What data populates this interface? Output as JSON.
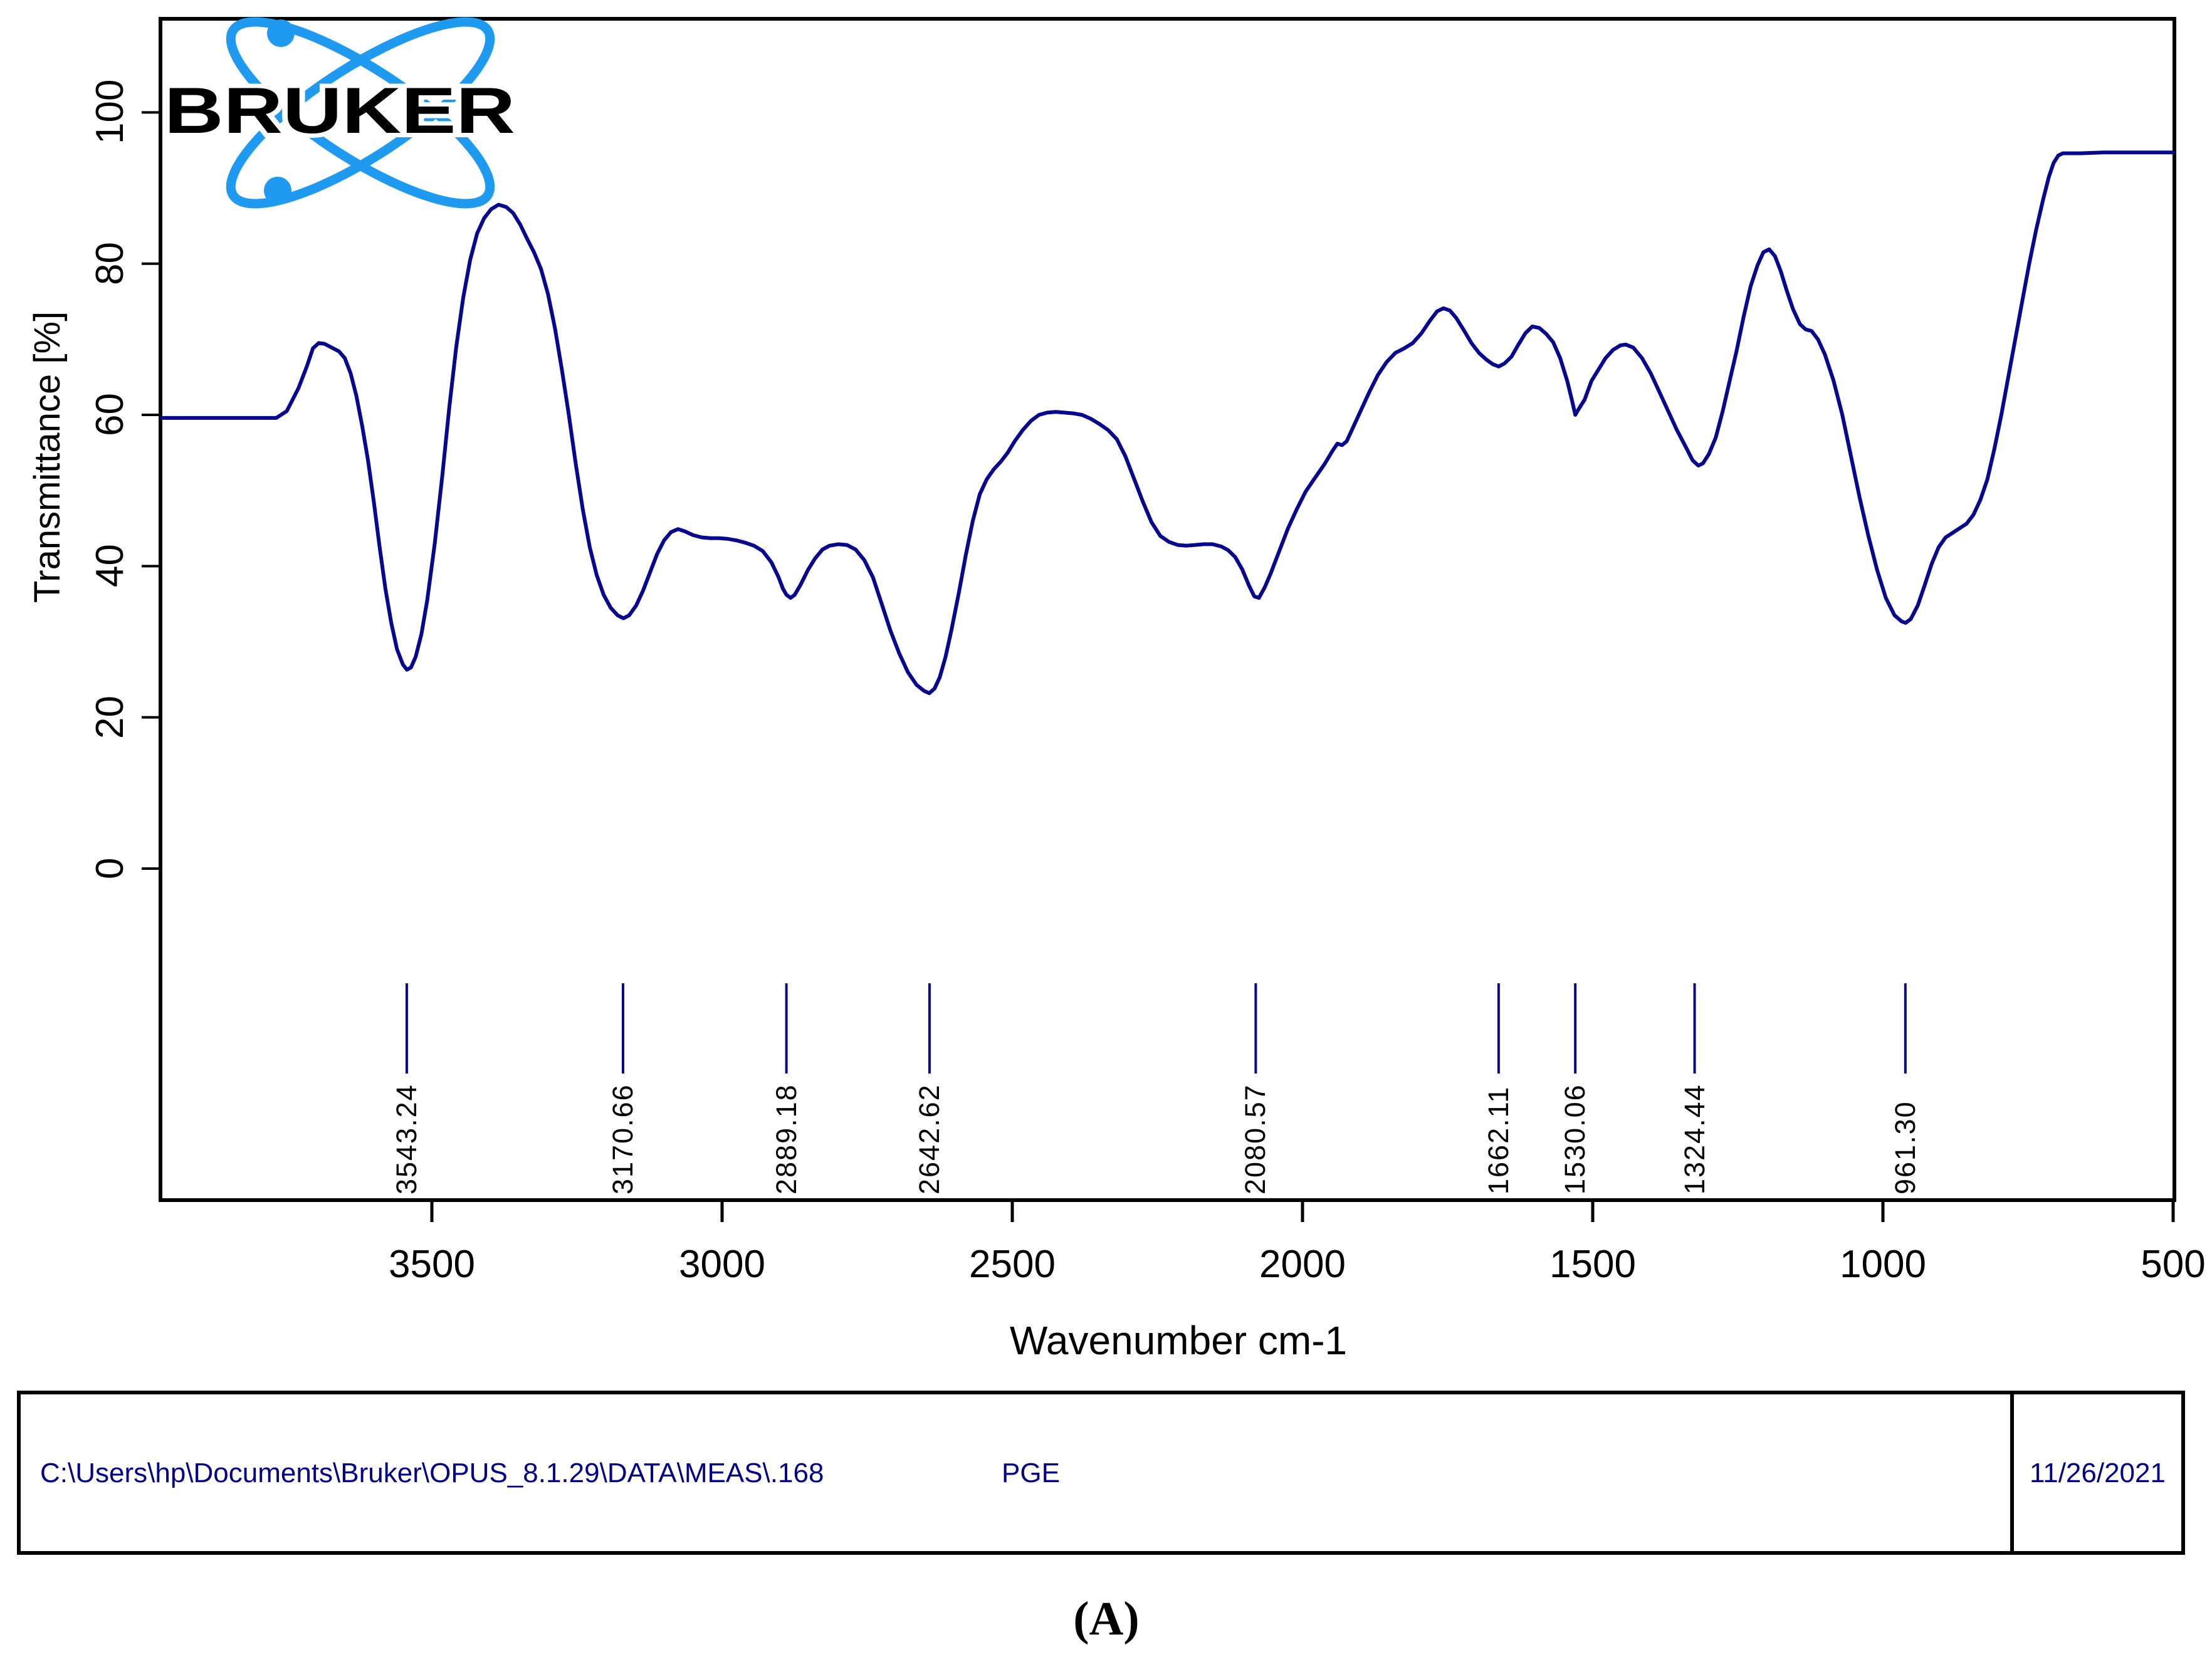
{
  "logo": {
    "text": "BRUKER",
    "blue": "#1E9AF0"
  },
  "chart_data": {
    "type": "line",
    "title": "",
    "xlabel": "Wavenumber cm-1",
    "ylabel": "Transmittance [%]",
    "x_ticks": [
      3500,
      3000,
      2500,
      2000,
      1500,
      1000,
      500
    ],
    "y_ticks": [
      0,
      20,
      40,
      60,
      80,
      100
    ],
    "x_axis_descending": true,
    "xlim": [
      3965,
      500
    ],
    "ylim": [
      -44,
      112
    ],
    "grid": false,
    "legend_position": "none",
    "line_color": "#08088F",
    "axis_color": "#000000",
    "peak_marker_color": "#08088F",
    "peak_labels": [
      "3543.24",
      "3170.66",
      "2889.18",
      "2642.62",
      "2080.57",
      "1662.11",
      "1530.06",
      "1324.44",
      "961.30"
    ],
    "series": [
      {
        "name": "PGE",
        "points": [
          [
            3965,
            59.6
          ],
          [
            3900,
            59.6
          ],
          [
            3850,
            59.6
          ],
          [
            3800,
            59.6
          ],
          [
            3768,
            59.6
          ],
          [
            3750,
            60.5
          ],
          [
            3730,
            63.5
          ],
          [
            3715,
            66.5
          ],
          [
            3705,
            68.8
          ],
          [
            3695,
            69.5
          ],
          [
            3685,
            69.4
          ],
          [
            3670,
            68.8
          ],
          [
            3660,
            68.4
          ],
          [
            3650,
            67.5
          ],
          [
            3640,
            65.5
          ],
          [
            3630,
            62.5
          ],
          [
            3620,
            58.5
          ],
          [
            3610,
            54
          ],
          [
            3600,
            48.5
          ],
          [
            3590,
            42.5
          ],
          [
            3580,
            37
          ],
          [
            3570,
            32.5
          ],
          [
            3560,
            29
          ],
          [
            3550,
            27
          ],
          [
            3543,
            26.3
          ],
          [
            3536,
            26.6
          ],
          [
            3528,
            28
          ],
          [
            3518,
            31
          ],
          [
            3508,
            35.5
          ],
          [
            3495,
            43
          ],
          [
            3482,
            52
          ],
          [
            3470,
            61
          ],
          [
            3458,
            69
          ],
          [
            3446,
            75.5
          ],
          [
            3434,
            80.5
          ],
          [
            3422,
            84
          ],
          [
            3410,
            86
          ],
          [
            3398,
            87.2
          ],
          [
            3385,
            87.8
          ],
          [
            3372,
            87.5
          ],
          [
            3360,
            86.7
          ],
          [
            3348,
            85.2
          ],
          [
            3336,
            83.3
          ],
          [
            3324,
            81.5
          ],
          [
            3312,
            79.3
          ],
          [
            3300,
            76
          ],
          [
            3288,
            71.5
          ],
          [
            3276,
            66
          ],
          [
            3264,
            60
          ],
          [
            3252,
            53.5
          ],
          [
            3240,
            47.5
          ],
          [
            3228,
            42.5
          ],
          [
            3216,
            38.8
          ],
          [
            3204,
            36.2
          ],
          [
            3192,
            34.5
          ],
          [
            3180,
            33.5
          ],
          [
            3170,
            33.1
          ],
          [
            3160,
            33.5
          ],
          [
            3148,
            34.8
          ],
          [
            3136,
            36.8
          ],
          [
            3124,
            39.2
          ],
          [
            3112,
            41.6
          ],
          [
            3100,
            43.4
          ],
          [
            3088,
            44.5
          ],
          [
            3076,
            44.9
          ],
          [
            3064,
            44.6
          ],
          [
            3050,
            44.1
          ],
          [
            3035,
            43.8
          ],
          [
            3020,
            43.7
          ],
          [
            3005,
            43.7
          ],
          [
            2990,
            43.6
          ],
          [
            2975,
            43.4
          ],
          [
            2960,
            43.1
          ],
          [
            2945,
            42.7
          ],
          [
            2930,
            42
          ],
          [
            2915,
            40.5
          ],
          [
            2903,
            38.6
          ],
          [
            2895,
            37
          ],
          [
            2889,
            36.2
          ],
          [
            2882,
            35.8
          ],
          [
            2875,
            36.2
          ],
          [
            2865,
            37.5
          ],
          [
            2852,
            39.5
          ],
          [
            2840,
            41
          ],
          [
            2827,
            42.2
          ],
          [
            2815,
            42.7
          ],
          [
            2800,
            42.9
          ],
          [
            2785,
            42.8
          ],
          [
            2770,
            42.2
          ],
          [
            2755,
            40.8
          ],
          [
            2740,
            38.5
          ],
          [
            2725,
            35
          ],
          [
            2710,
            31.5
          ],
          [
            2695,
            28.5
          ],
          [
            2680,
            26
          ],
          [
            2665,
            24.3
          ],
          [
            2652,
            23.5
          ],
          [
            2643,
            23.2
          ],
          [
            2634,
            23.8
          ],
          [
            2625,
            25.3
          ],
          [
            2615,
            28
          ],
          [
            2605,
            31.5
          ],
          [
            2592,
            36.5
          ],
          [
            2580,
            41.5
          ],
          [
            2568,
            46
          ],
          [
            2556,
            49.5
          ],
          [
            2544,
            51.5
          ],
          [
            2532,
            52.8
          ],
          [
            2520,
            53.8
          ],
          [
            2508,
            55
          ],
          [
            2496,
            56.5
          ],
          [
            2482,
            58
          ],
          [
            2468,
            59.2
          ],
          [
            2454,
            60
          ],
          [
            2440,
            60.3
          ],
          [
            2425,
            60.4
          ],
          [
            2410,
            60.3
          ],
          [
            2395,
            60.2
          ],
          [
            2380,
            60
          ],
          [
            2365,
            59.5
          ],
          [
            2350,
            58.8
          ],
          [
            2335,
            58
          ],
          [
            2320,
            56.8
          ],
          [
            2305,
            54.5
          ],
          [
            2290,
            51.5
          ],
          [
            2275,
            48.5
          ],
          [
            2260,
            45.8
          ],
          [
            2245,
            44
          ],
          [
            2230,
            43.2
          ],
          [
            2215,
            42.8
          ],
          [
            2200,
            42.7
          ],
          [
            2185,
            42.8
          ],
          [
            2170,
            42.9
          ],
          [
            2155,
            42.9
          ],
          [
            2140,
            42.6
          ],
          [
            2128,
            42.1
          ],
          [
            2116,
            41.2
          ],
          [
            2104,
            39.6
          ],
          [
            2092,
            37.4
          ],
          [
            2083,
            36
          ],
          [
            2075,
            35.8
          ],
          [
            2065,
            37.2
          ],
          [
            2055,
            39
          ],
          [
            2040,
            42
          ],
          [
            2025,
            45
          ],
          [
            2010,
            47.5
          ],
          [
            1995,
            49.8
          ],
          [
            1980,
            51.5
          ],
          [
            1962,
            53.5
          ],
          [
            1948,
            55.3
          ],
          [
            1940,
            56.2
          ],
          [
            1932,
            56
          ],
          [
            1924,
            56.5
          ],
          [
            1915,
            58
          ],
          [
            1900,
            60.5
          ],
          [
            1885,
            63
          ],
          [
            1870,
            65.3
          ],
          [
            1855,
            67
          ],
          [
            1840,
            68.2
          ],
          [
            1825,
            68.8
          ],
          [
            1810,
            69.5
          ],
          [
            1795,
            70.8
          ],
          [
            1780,
            72.5
          ],
          [
            1768,
            73.7
          ],
          [
            1757,
            74.1
          ],
          [
            1746,
            73.8
          ],
          [
            1735,
            72.8
          ],
          [
            1722,
            71.2
          ],
          [
            1709,
            69.5
          ],
          [
            1696,
            68.2
          ],
          [
            1683,
            67.3
          ],
          [
            1672,
            66.7
          ],
          [
            1662,
            66.4
          ],
          [
            1652,
            66.8
          ],
          [
            1640,
            67.7
          ],
          [
            1628,
            69.3
          ],
          [
            1616,
            70.8
          ],
          [
            1604,
            71.7
          ],
          [
            1592,
            71.5
          ],
          [
            1580,
            70.7
          ],
          [
            1568,
            69.6
          ],
          [
            1556,
            67.5
          ],
          [
            1544,
            64.5
          ],
          [
            1536,
            62
          ],
          [
            1530,
            60
          ],
          [
            1524,
            60.8
          ],
          [
            1514,
            62
          ],
          [
            1502,
            64.5
          ],
          [
            1490,
            66
          ],
          [
            1478,
            67.5
          ],
          [
            1465,
            68.6
          ],
          [
            1452,
            69.2
          ],
          [
            1443,
            69.3
          ],
          [
            1430,
            68.9
          ],
          [
            1415,
            67.5
          ],
          [
            1400,
            65.5
          ],
          [
            1385,
            63
          ],
          [
            1370,
            60.5
          ],
          [
            1355,
            58
          ],
          [
            1340,
            55.8
          ],
          [
            1328,
            54
          ],
          [
            1318,
            53.3
          ],
          [
            1310,
            53.6
          ],
          [
            1300,
            54.8
          ],
          [
            1288,
            57
          ],
          [
            1276,
            60.5
          ],
          [
            1264,
            64.5
          ],
          [
            1252,
            68.5
          ],
          [
            1240,
            73
          ],
          [
            1228,
            77
          ],
          [
            1216,
            79.8
          ],
          [
            1206,
            81.5
          ],
          [
            1196,
            81.9
          ],
          [
            1186,
            81
          ],
          [
            1176,
            79
          ],
          [
            1166,
            76.5
          ],
          [
            1155,
            74
          ],
          [
            1143,
            72
          ],
          [
            1133,
            71.3
          ],
          [
            1123,
            71.1
          ],
          [
            1112,
            70
          ],
          [
            1100,
            68
          ],
          [
            1085,
            64.5
          ],
          [
            1070,
            60
          ],
          [
            1055,
            54.5
          ],
          [
            1040,
            49
          ],
          [
            1025,
            44
          ],
          [
            1010,
            39.5
          ],
          [
            995,
            35.8
          ],
          [
            980,
            33.5
          ],
          [
            968,
            32.7
          ],
          [
            961,
            32.5
          ],
          [
            952,
            33
          ],
          [
            940,
            34.8
          ],
          [
            928,
            37.5
          ],
          [
            916,
            40.3
          ],
          [
            904,
            42.5
          ],
          [
            892,
            43.8
          ],
          [
            880,
            44.4
          ],
          [
            868,
            45
          ],
          [
            856,
            45.6
          ],
          [
            844,
            46.8
          ],
          [
            832,
            48.8
          ],
          [
            820,
            51.5
          ],
          [
            808,
            55.5
          ],
          [
            796,
            60
          ],
          [
            784,
            65
          ],
          [
            772,
            70
          ],
          [
            760,
            75
          ],
          [
            748,
            80
          ],
          [
            736,
            84.5
          ],
          [
            724,
            88.5
          ],
          [
            714,
            91.5
          ],
          [
            706,
            93.3
          ],
          [
            698,
            94.3
          ],
          [
            690,
            94.6
          ],
          [
            660,
            94.6
          ],
          [
            620,
            94.7
          ],
          [
            580,
            94.7
          ],
          [
            540,
            94.7
          ],
          [
            500,
            94.7
          ]
        ]
      }
    ]
  },
  "footer": {
    "path": "C:\\Users\\hp\\Documents\\Bruker\\OPUS_8.1.29\\DATA\\MEAS\\.168",
    "sample_name": "PGE",
    "date": "11/26/2021"
  },
  "caption": "(A)"
}
